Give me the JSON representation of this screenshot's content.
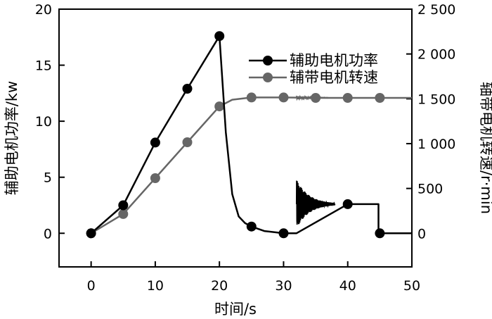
{
  "chart_data": {
    "type": "line",
    "xlabel": "时间/s",
    "ylabel_left": "辅助电机功率/kw",
    "ylabel_right": "轴带电机转速/r·min",
    "xlim": [
      -5,
      50
    ],
    "ylim_left": [
      -3,
      20
    ],
    "ylim_right": [
      -375,
      2500
    ],
    "x_ticks": [
      0,
      10,
      20,
      30,
      40,
      50
    ],
    "x_tick_labels": [
      "0",
      "10",
      "20",
      "30",
      "40",
      "50"
    ],
    "y_left_ticks": [
      0,
      5,
      10,
      15,
      20
    ],
    "y_left_tick_labels": [
      "0",
      "5",
      "10",
      "15",
      "20"
    ],
    "y_right_ticks": [
      0,
      500,
      1000,
      1500,
      2000,
      2500
    ],
    "y_right_tick_labels": [
      "0",
      "500",
      "1 000",
      "1 500",
      "2 000",
      "2 500"
    ],
    "grid": false,
    "legend_position": "top-right",
    "series": [
      {
        "name": "辅助电机功率",
        "axis": "left",
        "color": "#000000",
        "markers": [
          [
            0,
            0
          ],
          [
            5,
            2.5
          ],
          [
            10,
            8.1
          ],
          [
            15,
            12.9
          ],
          [
            20,
            17.6
          ],
          [
            25,
            0.6
          ],
          [
            30,
            0
          ],
          [
            40,
            2.6
          ],
          [
            45,
            0
          ]
        ],
        "curve": [
          [
            0,
            0
          ],
          [
            5,
            2.5
          ],
          [
            10,
            8.1
          ],
          [
            15,
            12.9
          ],
          [
            20,
            17.6
          ],
          [
            21,
            9.0
          ],
          [
            22,
            3.5
          ],
          [
            23,
            1.5
          ],
          [
            24,
            0.9
          ],
          [
            25,
            0.6
          ],
          [
            27,
            0.2
          ],
          [
            30,
            0
          ],
          [
            32,
            0
          ],
          [
            40,
            2.6
          ],
          [
            44.8,
            2.6
          ],
          [
            44.8,
            0
          ],
          [
            50,
            0
          ]
        ],
        "oscillation": {
          "start": 32,
          "end": 38,
          "center": 2.6,
          "amplitude_start": 2.2,
          "amplitude_end": 0.1
        }
      },
      {
        "name": "辅带电机转速",
        "axis": "right",
        "color": "#666666",
        "markers": [
          [
            0,
            0
          ],
          [
            5,
            215
          ],
          [
            10,
            615
          ],
          [
            15,
            1015
          ],
          [
            20,
            1415
          ],
          [
            25,
            1515
          ],
          [
            30,
            1515
          ],
          [
            35,
            1510
          ],
          [
            40,
            1510
          ],
          [
            45,
            1510
          ]
        ],
        "curve": [
          [
            0,
            0
          ],
          [
            5,
            215
          ],
          [
            10,
            615
          ],
          [
            15,
            1015
          ],
          [
            20,
            1415
          ],
          [
            22,
            1490
          ],
          [
            25,
            1515
          ],
          [
            30,
            1515
          ],
          [
            35,
            1510
          ],
          [
            40,
            1510
          ],
          [
            45,
            1510
          ],
          [
            50,
            1510
          ]
        ],
        "oscillation": {
          "start": 32,
          "end": 37,
          "center": 1512,
          "amplitude_start": 18,
          "amplitude_end": 2
        }
      }
    ]
  }
}
